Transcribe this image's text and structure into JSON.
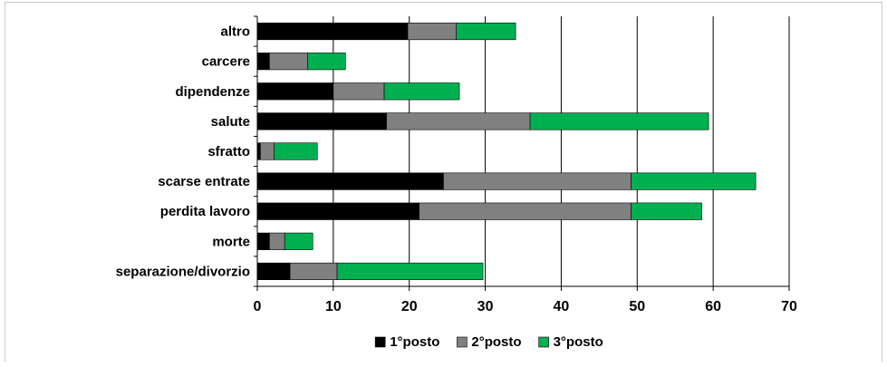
{
  "chart_data": {
    "type": "bar",
    "orientation": "horizontal",
    "stacked": true,
    "categories": [
      "altro",
      "carcere",
      "dipendenze",
      "salute",
      "sfratto",
      "scarse entrate",
      "perdita lavoro",
      "morte",
      "separazione/divorzio"
    ],
    "series": [
      {
        "name": "1°posto",
        "color": "#000000",
        "values": [
          19.8,
          1.6,
          10.0,
          17.0,
          0.4,
          24.5,
          21.3,
          1.6,
          4.3
        ]
      },
      {
        "name": "2°posto",
        "color": "#808080",
        "values": [
          6.4,
          5.0,
          6.7,
          18.9,
          1.8,
          24.7,
          27.9,
          2.0,
          6.2
        ]
      },
      {
        "name": "3°posto",
        "color": "#00b050",
        "values": [
          7.8,
          5.0,
          9.9,
          23.5,
          5.7,
          16.4,
          9.3,
          3.7,
          19.2
        ]
      }
    ],
    "xlim": [
      0,
      70
    ],
    "xticks": [
      0,
      10,
      20,
      30,
      40,
      50,
      60,
      70
    ],
    "xlabel": "",
    "ylabel": "",
    "title": "",
    "grid": "vertical",
    "legend_position": "bottom"
  }
}
